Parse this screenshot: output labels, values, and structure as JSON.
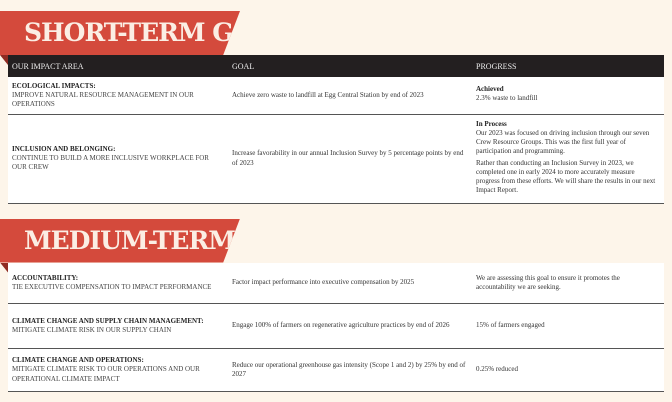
{
  "short_term": {
    "title": "SHORT-TERM GOALS",
    "headers": [
      "OUR IMPACT AREA",
      "GOAL",
      "PROGRESS"
    ],
    "rows": [
      {
        "area_title": "ECOLOGICAL IMPACTS:",
        "area_desc": "IMPROVE NATURAL RESOURCE MANAGEMENT IN OUR OPERATIONS",
        "goal": "Achieve zero waste to landfill at Egg Central Station by end of 2023",
        "status": "Achieved",
        "progress": [
          "2.3% waste to landfill"
        ]
      },
      {
        "area_title": "INCLUSION AND BELONGING:",
        "area_desc": "CONTINUE TO BUILD A MORE INCLUSIVE WORKPLACE FOR OUR CREW",
        "goal": "Increase favorability in our annual Inclusion Survey by 5 percentage points by end of 2023",
        "status": "In Process",
        "progress": [
          "Our 2023 was focused on driving inclusion through our seven Crew Resource Groups. This was the first full year of participation and programming.",
          "Rather than conducting an Inclusion Survey in 2023, we completed one in early 2024 to more accurately measure progress from these efforts. We will share the results in our next Impact Report."
        ]
      }
    ]
  },
  "medium_term": {
    "title": "MEDIUM-TERM GOALS",
    "rows": [
      {
        "area_title": "ACCOUNTABILITY:",
        "area_desc": "TIE EXECUTIVE COMPENSATION TO IMPACT PERFORMANCE",
        "goal": "Factor impact performance into executive compensation by 2025",
        "progress": "We are assessing this goal to ensure it promotes the accountability we are seeking."
      },
      {
        "area_title": "CLIMATE CHANGE AND SUPPLY CHAIN MANAGEMENT:",
        "area_desc": "MITIGATE CLIMATE RISK IN OUR SUPPLY CHAIN",
        "goal": "Engage 100% of farmers on regenerative agriculture practices by end of 2026",
        "progress": "15% of farmers engaged"
      },
      {
        "area_title": "CLIMATE CHANGE AND OPERATIONS:",
        "area_desc": "MITIGATE CLIMATE RISK TO OUR OPERATIONS AND OUR OPERATIONAL CLIMATE IMPACT",
        "goal": "Reduce our operational greenhouse gas intensity (Scope 1 and 2) by 25% by end of 2027",
        "progress": "0.25% reduced"
      }
    ]
  },
  "colors": {
    "banner": "#d44a3c",
    "header": "#231f20",
    "background": "#fdf5ea"
  }
}
